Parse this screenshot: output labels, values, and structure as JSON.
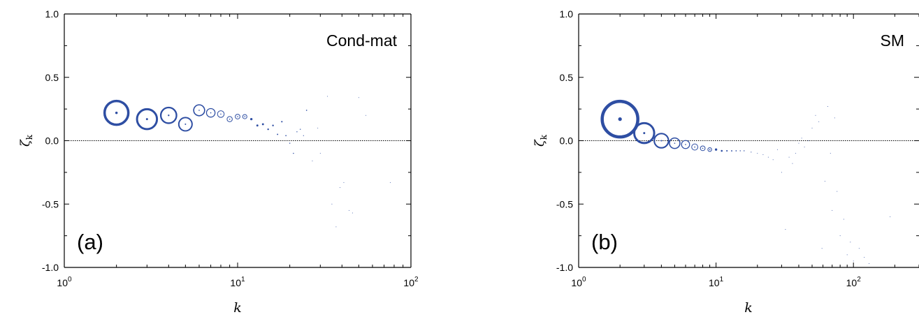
{
  "colors": {
    "marker": "#2e4ea3",
    "axis": "#000000",
    "zero_line": "#000000"
  },
  "chart_data": [
    {
      "type": "scatter",
      "panel_label": "(a)",
      "corner_label": "Cond-mat",
      "xlabel": "k",
      "ylabel_symbol": "ζ",
      "ylabel_sub": "k",
      "x_scale": "log",
      "xlim": [
        1,
        100
      ],
      "ylim": [
        -1.0,
        1.0
      ],
      "yticks": [
        {
          "v": 1.0,
          "label": "1.0"
        },
        {
          "v": 0.5,
          "label": "0.5"
        },
        {
          "v": 0.0,
          "label": "0.0"
        },
        {
          "v": -0.5,
          "label": "-0.5"
        },
        {
          "v": -1.0,
          "label": "-1.0"
        }
      ],
      "xticks": [
        {
          "v": 1,
          "base": "10",
          "exp": "0"
        },
        {
          "v": 10,
          "base": "10",
          "exp": "1"
        },
        {
          "v": 100,
          "base": "10",
          "exp": "2"
        }
      ],
      "reference_line": 0.0,
      "grid": false,
      "marker_size_meaning": "circle size varies with k",
      "points": [
        {
          "x": 2,
          "y": 0.22,
          "size": 5
        },
        {
          "x": 3,
          "y": 0.17,
          "size": 4.2
        },
        {
          "x": 4,
          "y": 0.2,
          "size": 3.3
        },
        {
          "x": 5,
          "y": 0.13,
          "size": 2.8
        },
        {
          "x": 6,
          "y": 0.24,
          "size": 2.3
        },
        {
          "x": 7,
          "y": 0.22,
          "size": 1.8
        },
        {
          "x": 8,
          "y": 0.21,
          "size": 1.4
        },
        {
          "x": 9,
          "y": 0.17,
          "size": 1.1
        },
        {
          "x": 10,
          "y": 0.19,
          "size": 1.0
        },
        {
          "x": 11,
          "y": 0.19,
          "size": 0.9
        },
        {
          "x": 12,
          "y": 0.17,
          "size": 0.7
        },
        {
          "x": 13,
          "y": 0.12,
          "size": 0.6
        },
        {
          "x": 14,
          "y": 0.13,
          "size": 0.6
        },
        {
          "x": 15,
          "y": 0.09,
          "size": 0.5
        },
        {
          "x": 16,
          "y": 0.12,
          "size": 0.5
        },
        {
          "x": 17,
          "y": 0.05,
          "size": 0.4
        },
        {
          "x": 18,
          "y": 0.15,
          "size": 0.45
        },
        {
          "x": 19,
          "y": 0.04,
          "size": 0.35
        },
        {
          "x": 20,
          "y": -0.02,
          "size": 0.3
        },
        {
          "x": 21,
          "y": -0.1,
          "size": 0.3
        },
        {
          "x": 22,
          "y": 0.07,
          "size": 0.3
        },
        {
          "x": 23,
          "y": 0.09,
          "size": 0.3
        },
        {
          "x": 25,
          "y": 0.24,
          "size": 0.35
        },
        {
          "x": 24,
          "y": 0.04,
          "size": 0.25
        },
        {
          "x": 27,
          "y": -0.16,
          "size": 0.2
        },
        {
          "x": 29,
          "y": 0.1,
          "size": 0.2
        },
        {
          "x": 30,
          "y": -0.1,
          "size": 0.15
        },
        {
          "x": 33,
          "y": 0.35,
          "size": 0.15
        },
        {
          "x": 35,
          "y": -0.5,
          "size": 0.15
        },
        {
          "x": 37,
          "y": -0.68,
          "size": 0.15
        },
        {
          "x": 39,
          "y": -0.37,
          "size": 0.15
        },
        {
          "x": 41,
          "y": -0.33,
          "size": 0.15
        },
        {
          "x": 44,
          "y": -0.55,
          "size": 0.15
        },
        {
          "x": 46,
          "y": -0.57,
          "size": 0.15
        },
        {
          "x": 50,
          "y": 0.34,
          "size": 0.15
        },
        {
          "x": 55,
          "y": 0.2,
          "size": 0.15
        },
        {
          "x": 76,
          "y": -0.33,
          "size": 0.15
        }
      ]
    },
    {
      "type": "scatter",
      "panel_label": "(b)",
      "corner_label": "SM",
      "xlabel": "k",
      "ylabel_symbol": "ζ",
      "ylabel_sub": "k",
      "x_scale": "log",
      "xlim": [
        1,
        300
      ],
      "ylim": [
        -1.0,
        1.0
      ],
      "yticks": [
        {
          "v": 1.0,
          "label": "1.0"
        },
        {
          "v": 0.5,
          "label": "0.5"
        },
        {
          "v": 0.0,
          "label": "0.0"
        },
        {
          "v": -0.5,
          "label": "-0.5"
        },
        {
          "v": -1.0,
          "label": "-1.0"
        }
      ],
      "xticks": [
        {
          "v": 1,
          "base": "10",
          "exp": "0"
        },
        {
          "v": 10,
          "base": "10",
          "exp": "1"
        },
        {
          "v": 100,
          "base": "10",
          "exp": "2"
        }
      ],
      "reference_line": 0.0,
      "grid": false,
      "marker_size_meaning": "circle size varies with k",
      "points": [
        {
          "x": 2,
          "y": 0.17,
          "size": 7.5
        },
        {
          "x": 3,
          "y": 0.06,
          "size": 4.2
        },
        {
          "x": 4,
          "y": 0.0,
          "size": 3.0
        },
        {
          "x": 5,
          "y": -0.02,
          "size": 2.2
        },
        {
          "x": 6,
          "y": -0.03,
          "size": 1.7
        },
        {
          "x": 7,
          "y": -0.05,
          "size": 1.3
        },
        {
          "x": 8,
          "y": -0.06,
          "size": 1.0
        },
        {
          "x": 9,
          "y": -0.07,
          "size": 0.8
        },
        {
          "x": 10,
          "y": -0.07,
          "size": 0.7
        },
        {
          "x": 11,
          "y": -0.08,
          "size": 0.55
        },
        {
          "x": 12,
          "y": -0.08,
          "size": 0.45
        },
        {
          "x": 13,
          "y": -0.08,
          "size": 0.4
        },
        {
          "x": 14,
          "y": -0.08,
          "size": 0.35
        },
        {
          "x": 15,
          "y": -0.08,
          "size": 0.3
        },
        {
          "x": 16,
          "y": -0.08,
          "size": 0.3
        },
        {
          "x": 18,
          "y": -0.09,
          "size": 0.25
        },
        {
          "x": 20,
          "y": -0.1,
          "size": 0.2
        },
        {
          "x": 22,
          "y": -0.11,
          "size": 0.2
        },
        {
          "x": 24,
          "y": -0.13,
          "size": 0.15
        },
        {
          "x": 26,
          "y": -0.15,
          "size": 0.15
        },
        {
          "x": 28,
          "y": -0.07,
          "size": 0.15
        },
        {
          "x": 30,
          "y": -0.25,
          "size": 0.15
        },
        {
          "x": 32,
          "y": -0.7,
          "size": 0.15
        },
        {
          "x": 34,
          "y": -0.13,
          "size": 0.15
        },
        {
          "x": 36,
          "y": -0.18,
          "size": 0.15
        },
        {
          "x": 38,
          "y": -0.1,
          "size": 0.15
        },
        {
          "x": 40,
          "y": -0.02,
          "size": 0.15
        },
        {
          "x": 42,
          "y": 0.02,
          "size": 0.15
        },
        {
          "x": 44,
          "y": -0.05,
          "size": 0.15
        },
        {
          "x": 47,
          "y": 0.0,
          "size": 0.15
        },
        {
          "x": 50,
          "y": 0.1,
          "size": 0.15
        },
        {
          "x": 53,
          "y": 0.2,
          "size": 0.15
        },
        {
          "x": 56,
          "y": 0.15,
          "size": 0.15
        },
        {
          "x": 59,
          "y": -0.85,
          "size": 0.15
        },
        {
          "x": 62,
          "y": -0.32,
          "size": 0.15
        },
        {
          "x": 65,
          "y": 0.27,
          "size": 0.15
        },
        {
          "x": 68,
          "y": -0.1,
          "size": 0.2
        },
        {
          "x": 70,
          "y": -0.55,
          "size": 0.15
        },
        {
          "x": 73,
          "y": 0.18,
          "size": 0.15
        },
        {
          "x": 76,
          "y": -0.4,
          "size": 0.15
        },
        {
          "x": 80,
          "y": -0.75,
          "size": 0.15
        },
        {
          "x": 85,
          "y": -0.62,
          "size": 0.15
        },
        {
          "x": 90,
          "y": -0.9,
          "size": 0.15
        },
        {
          "x": 95,
          "y": -0.8,
          "size": 0.15
        },
        {
          "x": 100,
          "y": -0.95,
          "size": 0.15
        },
        {
          "x": 110,
          "y": -0.85,
          "size": 0.15
        },
        {
          "x": 120,
          "y": -0.92,
          "size": 0.15
        },
        {
          "x": 130,
          "y": -0.97,
          "size": 0.15
        },
        {
          "x": 185,
          "y": -0.6,
          "size": 0.15
        }
      ]
    }
  ]
}
